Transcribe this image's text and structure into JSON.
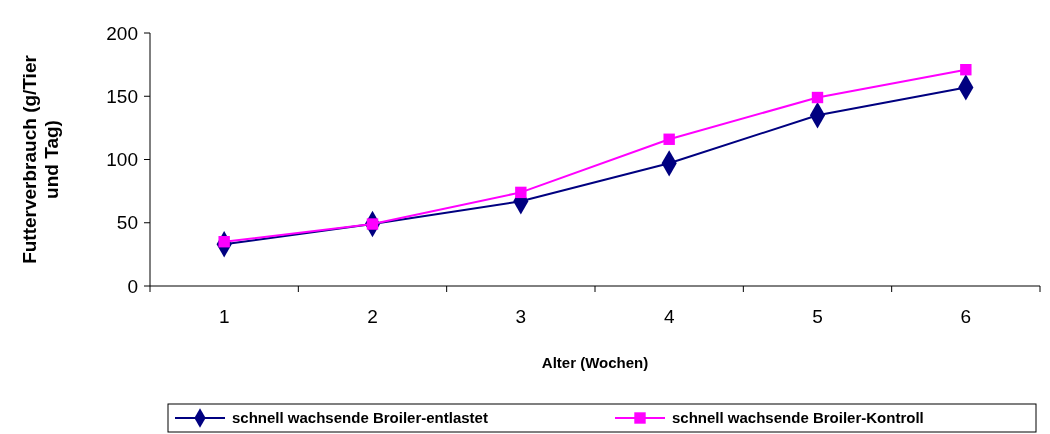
{
  "chart_data": {
    "type": "line",
    "xlabel": "Alter (Wochen)",
    "ylabel": "Futterverbrauch (g/Tier und Tag)",
    "categories": [
      "1",
      "2",
      "3",
      "4",
      "5",
      "6"
    ],
    "ylim": [
      0,
      200
    ],
    "yticks": [
      0,
      50,
      100,
      150,
      200
    ],
    "grid": false,
    "legend": "bottom",
    "series": [
      {
        "name": "schnell wachsende Broiler-entlastet",
        "color": "#000080",
        "marker": "diamond",
        "values": [
          33,
          49,
          67,
          97,
          135,
          157
        ]
      },
      {
        "name": "schnell wachsende Broiler-Kontroll",
        "color": "#ff00ff",
        "marker": "square",
        "values": [
          35,
          49,
          74,
          116,
          149,
          171
        ]
      }
    ]
  }
}
